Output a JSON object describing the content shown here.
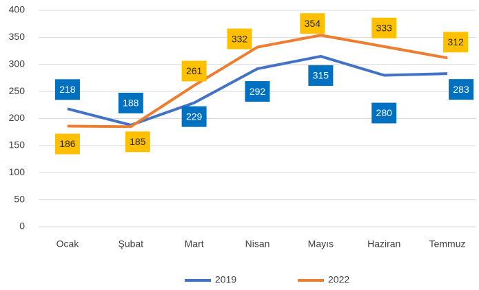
{
  "chart_data": {
    "type": "line",
    "categories": [
      "Ocak",
      "Şubat",
      "Mart",
      "Nisan",
      "Mayıs",
      "Haziran",
      "Temmuz"
    ],
    "series": [
      {
        "name": "2019",
        "color": "#4472c4",
        "label_color": "#0070c0",
        "values": [
          218,
          188,
          229,
          292,
          315,
          280,
          283
        ]
      },
      {
        "name": "2022",
        "color": "#ed7d31",
        "label_color": "#ffc000",
        "values": [
          186,
          185,
          261,
          332,
          354,
          333,
          312
        ]
      }
    ],
    "ylim": [
      0,
      400
    ],
    "yticks": [
      0,
      50,
      100,
      150,
      200,
      250,
      300,
      350,
      400
    ],
    "grid": true,
    "legend": "bottom"
  }
}
